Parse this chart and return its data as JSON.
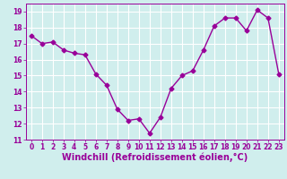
{
  "xlabel": "Windchill (Refroidissement éolien,°C)",
  "x": [
    0,
    1,
    2,
    3,
    4,
    5,
    6,
    7,
    8,
    9,
    10,
    11,
    12,
    13,
    14,
    15,
    16,
    17,
    18,
    19,
    20,
    21,
    22,
    23
  ],
  "y": [
    17.5,
    17.0,
    17.1,
    16.6,
    16.4,
    16.3,
    15.1,
    14.4,
    12.9,
    12.2,
    12.3,
    11.4,
    12.4,
    14.2,
    15.0,
    15.3,
    16.6,
    18.1,
    18.6,
    18.6,
    17.8,
    19.1,
    18.6,
    15.1
  ],
  "line_color": "#990099",
  "marker": "D",
  "marker_size": 2.5,
  "bg_color": "#d0eeed",
  "grid_color": "#b8dedd",
  "ylim": [
    11,
    19.5
  ],
  "xlim": [
    -0.5,
    23.5
  ],
  "yticks": [
    11,
    12,
    13,
    14,
    15,
    16,
    17,
    18,
    19
  ],
  "xticks": [
    0,
    1,
    2,
    3,
    4,
    5,
    6,
    7,
    8,
    9,
    10,
    11,
    12,
    13,
    14,
    15,
    16,
    17,
    18,
    19,
    20,
    21,
    22,
    23
  ],
  "tick_label_fontsize": 5.5,
  "xlabel_fontsize": 7.0,
  "line_width": 1.0
}
